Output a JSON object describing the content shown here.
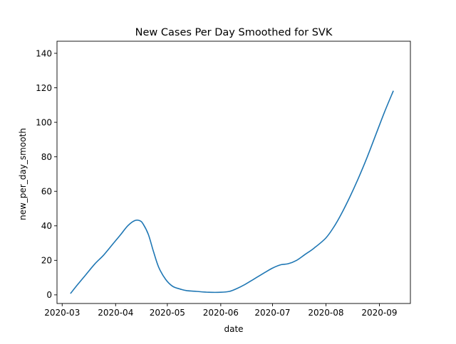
{
  "chart_data": {
    "type": "line",
    "title": "New Cases Per Day Smoothed for SVK",
    "xlabel": "date",
    "ylabel": "new_per_day_smooth",
    "x_type": "date",
    "xlim": [
      "2020-02-27",
      "2020-09-19"
    ],
    "ylim": [
      -5,
      147
    ],
    "x_ticks": [
      "2020-03",
      "2020-04",
      "2020-05",
      "2020-06",
      "2020-07",
      "2020-08",
      "2020-09"
    ],
    "x_tick_dates": [
      "2020-03-01",
      "2020-04-01",
      "2020-05-01",
      "2020-06-01",
      "2020-07-01",
      "2020-08-01",
      "2020-09-01"
    ],
    "y_ticks": [
      0,
      20,
      40,
      60,
      80,
      100,
      120,
      140
    ],
    "grid": false,
    "line_color": "#1f77b4",
    "series": [
      {
        "x": [
          "2020-03-06",
          "2020-03-10",
          "2020-03-15",
          "2020-03-20",
          "2020-03-25",
          "2020-03-30",
          "2020-04-04",
          "2020-04-08",
          "2020-04-12",
          "2020-04-15",
          "2020-04-17",
          "2020-04-20",
          "2020-04-23",
          "2020-04-26",
          "2020-04-30",
          "2020-05-04",
          "2020-05-08",
          "2020-05-12",
          "2020-05-18",
          "2020-05-25",
          "2020-06-01",
          "2020-06-06",
          "2020-06-10",
          "2020-06-15",
          "2020-06-20",
          "2020-06-25",
          "2020-07-01",
          "2020-07-06",
          "2020-07-10",
          "2020-07-15",
          "2020-07-20",
          "2020-07-25",
          "2020-08-01",
          "2020-08-06",
          "2020-08-10",
          "2020-08-15",
          "2020-08-20",
          "2020-08-25",
          "2020-08-30",
          "2020-09-04",
          "2020-09-09"
        ],
        "y": [
          1,
          6,
          12,
          18,
          23,
          29,
          35,
          40,
          43,
          43,
          41,
          35,
          25,
          16,
          9,
          5,
          3.5,
          2.5,
          2,
          1.5,
          1.5,
          2,
          3.5,
          6,
          9,
          12,
          15.5,
          17.5,
          18,
          20,
          23.5,
          27,
          33,
          40,
          47,
          57,
          68,
          80,
          93,
          106,
          118
        ]
      }
    ]
  }
}
